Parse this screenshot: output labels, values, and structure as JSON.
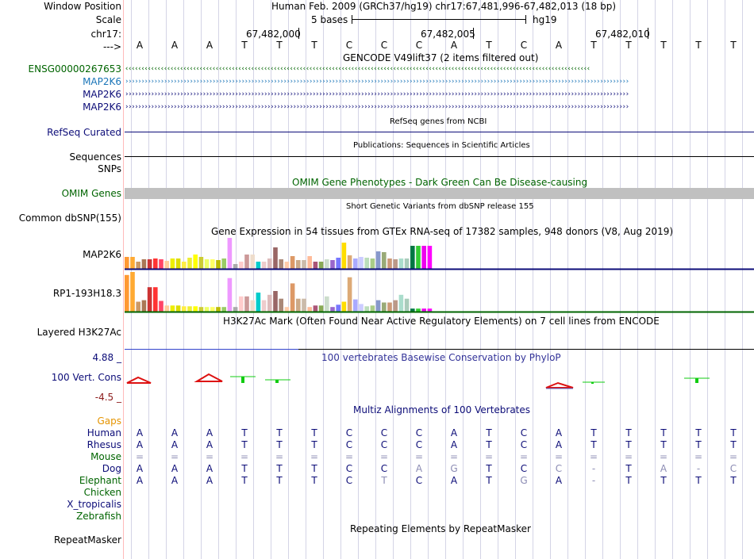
{
  "header": {
    "window_position_label": "Window Position",
    "scale_label": "Scale",
    "chrom_label": "chr17:",
    "strand_label": "--->",
    "position_text": "Human Feb. 2009 (GRCh37/hg19)   chr17:67,481,996-67,482,013 (18 bp)",
    "scale_text": "5 bases",
    "assembly": "hg19",
    "coords": [
      "67,482,000",
      "67,482,005",
      "67,482,010"
    ]
  },
  "sequence": [
    "A",
    "A",
    "A",
    "T",
    "T",
    "T",
    "C",
    "C",
    "C",
    "A",
    "T",
    "C",
    "A",
    "T",
    "T",
    "T",
    "T",
    "T"
  ],
  "gencode": {
    "title": "GENCODE V49lift37 (2 items filtered out)",
    "rows": [
      {
        "label": "ENSG00000267653",
        "arrows": "‹‹‹‹‹‹‹‹‹‹‹‹‹‹‹‹‹‹‹‹‹‹‹‹‹‹‹‹‹‹‹‹‹‹‹‹‹‹‹‹‹‹‹‹‹‹‹‹‹‹‹‹‹‹‹‹‹‹‹‹‹‹‹‹‹‹‹‹‹‹‹‹‹‹‹‹‹‹‹‹‹‹‹‹‹‹‹‹‹‹‹‹‹‹‹‹‹‹‹‹‹‹‹‹‹‹‹‹‹‹‹‹‹‹‹‹‹‹‹‹‹‹‹‹‹‹‹‹‹‹‹‹‹‹‹‹‹‹‹‹‹‹‹‹",
        "color": "#006400"
      },
      {
        "label": "MAP2K6",
        "arrows": "››››››››››››››››››››››››››››››››››››››››››››››››››››››››››››››››››››››››››››››››››››››››››››››››››››››››››››››››››››››››››››››››››››››››››››››››››››››››››››",
        "color": "#1a75b8"
      },
      {
        "label": "MAP2K6",
        "arrows": "››››››››››››››››››››››››››››››››››››››››››››››››››››››››››››››››››››››››››››››››››››››››››››››››››››››››››››››››››››››››››››››››››››››››››››››››››››››››››››",
        "color": "#0c0c78"
      },
      {
        "label": "MAP2K6",
        "arrows": "››››››››››››››››››››››››››››››››››››››››››››››››››››››››››››››››››››››››››››››››››››››››››››››››››››››››››››››››››››››››››››››››››››››››››››››››››››››››››››",
        "color": "#0c0c78"
      }
    ]
  },
  "refseq": {
    "title": "RefSeq genes from NCBI",
    "label": "RefSeq Curated"
  },
  "publications": {
    "title": "Publications: Sequences in Scientific Articles",
    "label1": "Sequences",
    "label2": "SNPs"
  },
  "omim": {
    "title": "OMIM Gene Phenotypes - Dark Green Can Be Disease-causing",
    "label": "OMIM Genes"
  },
  "dbsnp": {
    "title": "Short Genetic Variants from dbSNP release 155",
    "label": "Common dbSNP(155)"
  },
  "gtex": {
    "title": "Gene Expression in 54 tissues from GTEx RNA-seq of 17382 samples, 948 donors (V8, Aug 2019)",
    "label1": "MAP2K6",
    "label2": "RP1-193H18.3",
    "colors": [
      "#ff9933",
      "#ffaa33",
      "#cc9966",
      "#aa7755",
      "#cc3333",
      "#ff3333",
      "#ff4466",
      "#ffcc99",
      "#eeee00",
      "#dddd00",
      "#ffee44",
      "#eeee33",
      "#ffff00",
      "#cccc33",
      "#eeff66",
      "#ffff66",
      "#bbbb00",
      "#99cc66",
      "#ee99ff",
      "#aaaaaa",
      "#ffcccc",
      "#cc9999",
      "#eeddcc",
      "#00cccc",
      "#eecccc",
      "#ddbbbb",
      "#996666",
      "#aa8877",
      "#ffccaa",
      "#dd9966",
      "#ccaa88",
      "#ccbbaa",
      "#ffbb99",
      "#aa5577",
      "#88aa55",
      "#ccddcc",
      "#9966cc",
      "#7777ff",
      "#ffdd00",
      "#ddaa77",
      "#aaaaff",
      "#ccccff",
      "#bbddbb",
      "#aacc88",
      "#8899cc",
      "#99aa77",
      "#cc9977",
      "#bb9988",
      "#aaddcc",
      "#aaccbb",
      "#007744",
      "#33cc33",
      "#ee00ee",
      "#ff00ff"
    ],
    "values1": [
      15,
      15,
      9,
      12,
      12,
      13,
      12,
      10,
      13,
      13,
      9,
      14,
      18,
      15,
      12,
      12,
      11,
      13,
      39,
      6,
      9,
      18,
      18,
      9,
      9,
      13,
      27,
      12,
      9,
      16,
      11,
      11,
      16,
      9,
      9,
      12,
      11,
      14,
      33,
      17,
      13,
      15,
      14,
      13,
      22,
      21,
      13,
      12,
      13,
      13,
      29,
      29,
      29,
      29
    ],
    "values2": [
      48,
      52,
      13,
      15,
      32,
      32,
      14,
      8,
      8,
      8,
      7,
      7,
      7,
      6,
      6,
      6,
      6,
      6,
      44,
      6,
      20,
      20,
      15,
      25,
      15,
      22,
      27,
      17,
      6,
      37,
      17,
      17,
      6,
      8,
      8,
      20,
      6,
      9,
      13,
      45,
      16,
      10,
      7,
      8,
      15,
      12,
      12,
      15,
      22,
      17,
      4,
      4,
      4,
      4
    ]
  },
  "h3k27ac": {
    "title": "H3K27Ac Mark (Often Found Near Active Regulatory Elements) on 7 cell lines from ENCODE",
    "label": "Layered H3K27Ac"
  },
  "phylop": {
    "title": "100 vertebrates Basewise Conservation by PhyloP",
    "label": "100 Vert. Cons",
    "max": "4.88 _",
    "min": "-4.5 _"
  },
  "multiz": {
    "title": "Multiz Alignments of 100 Vertebrates",
    "gaps_label": "Gaps",
    "species": [
      {
        "name": "Human",
        "color": "#0c0c78",
        "bases": [
          "A",
          "A",
          "A",
          "T",
          "T",
          "T",
          "C",
          "C",
          "C",
          "A",
          "T",
          "C",
          "A",
          "T",
          "T",
          "T",
          "T",
          "T"
        ],
        "dim": []
      },
      {
        "name": "Rhesus",
        "color": "#0c0c78",
        "bases": [
          "A",
          "A",
          "A",
          "T",
          "T",
          "T",
          "C",
          "C",
          "C",
          "A",
          "T",
          "C",
          "A",
          "T",
          "T",
          "T",
          "T",
          "T"
        ],
        "dim": []
      },
      {
        "name": "Mouse",
        "color": "#006400",
        "bases": [
          "=",
          "=",
          "=",
          "=",
          "=",
          "=",
          "=",
          "=",
          "=",
          "=",
          "=",
          "=",
          "=",
          "=",
          "=",
          "=",
          "=",
          "="
        ],
        "dim": []
      },
      {
        "name": "Dog",
        "color": "#0c0c78",
        "bases": [
          "A",
          "A",
          "A",
          "T",
          "T",
          "T",
          "C",
          "C",
          "A",
          "G",
          "T",
          "C",
          "C",
          "-",
          "T",
          "A",
          "-",
          "C"
        ],
        "dim": [
          8,
          9,
          12,
          13,
          15,
          16,
          17
        ]
      },
      {
        "name": "Elephant",
        "color": "#006400",
        "bases": [
          "A",
          "A",
          "A",
          "T",
          "T",
          "T",
          "C",
          "T",
          "C",
          "A",
          "T",
          "G",
          "A",
          "-",
          "T",
          "T",
          "T",
          "T"
        ],
        "dim": [
          7,
          11,
          13
        ]
      },
      {
        "name": "Chicken",
        "color": "#006400",
        "bases": [],
        "dim": []
      },
      {
        "name": "X_tropicalis",
        "color": "#0c0c78",
        "bases": [],
        "dim": []
      },
      {
        "name": "Zebrafish",
        "color": "#006400",
        "bases": [],
        "dim": []
      }
    ]
  },
  "repeatmasker": {
    "title": "Repeating Elements by RepeatMasker",
    "label": "RepeatMasker"
  },
  "colors": {
    "navy": "#0c0c78",
    "dark_green": "#006400",
    "gap_orange": "#e59400",
    "phylop_red": "#dd1111",
    "phylop_green": "#11cc11",
    "omim_gray": "#c0c0c0"
  }
}
